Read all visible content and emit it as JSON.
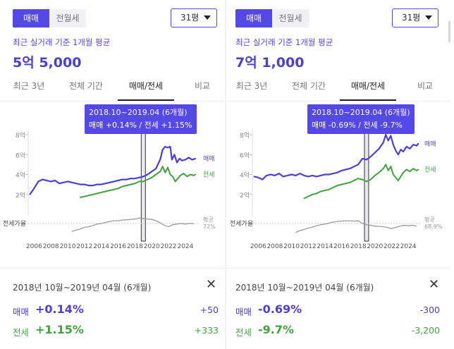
{
  "colors": {
    "accent": "#5448e6",
    "sale_line": "#4c3fd9",
    "jeonse_line": "#3fa43a",
    "ratio_line": "#9a9a9a"
  },
  "icons": {
    "dropdown": "chevron-down-icon",
    "close": "close-icon"
  },
  "panels": [
    {
      "toggle": {
        "sale": "매매",
        "rent": "전월세"
      },
      "size_select": "31평",
      "subtitle": "최근 실거래 기준 1개월 평균",
      "price": "5억 5,000",
      "tabs": [
        "최근 3년",
        "전체 기간",
        "매매/전세",
        "비교"
      ],
      "active_tab": "매매/전세",
      "tooltip": {
        "line1": "2018.10~2019.04 (6개월)",
        "line2": "매매 +0.14%  /  전세 +1.15%"
      },
      "summary": {
        "period": "2018년 10월~2019년 04월 (6개월)",
        "sale_label": "매매",
        "sale_pct": "+0.14%",
        "sale_delta": "+50",
        "jeonse_label": "전세",
        "jeonse_pct": "+1.15%",
        "jeonse_delta": "+333"
      },
      "chart_data": {
        "type": "line",
        "y_ticks": [
          "2억",
          "4억",
          "6억",
          "8억"
        ],
        "ylim": [
          0,
          8.5
        ],
        "x_ticks": [
          "2006",
          "2008",
          "2010",
          "2012",
          "2014",
          "2016",
          "2018",
          "2020",
          "2022",
          "2024"
        ],
        "xlim": [
          2005.3,
          2025.6
        ],
        "selection": [
          2018.75,
          2019.25
        ],
        "series": [
          {
            "name": "매매",
            "points": [
              [
                2005.5,
                2.0
              ],
              [
                2006,
                2.6
              ],
              [
                2006.5,
                3.3
              ],
              [
                2007,
                3.5
              ],
              [
                2007.5,
                3.4
              ],
              [
                2008,
                3.3
              ],
              [
                2008.5,
                3.4
              ],
              [
                2009,
                3.1
              ],
              [
                2009.5,
                3.2
              ],
              [
                2010,
                3.3
              ],
              [
                2010.5,
                3.2
              ],
              [
                2011,
                3.1
              ],
              [
                2011.5,
                3.0
              ],
              [
                2012,
                3.0
              ],
              [
                2012.5,
                2.9
              ],
              [
                2013,
                2.9
              ],
              [
                2013.5,
                3.0
              ],
              [
                2014,
                3.0
              ],
              [
                2014.5,
                3.1
              ],
              [
                2015,
                3.2
              ],
              [
                2015.5,
                3.3
              ],
              [
                2016,
                3.4
              ],
              [
                2016.5,
                3.5
              ],
              [
                2017,
                3.5
              ],
              [
                2017.5,
                3.6
              ],
              [
                2018,
                3.6
              ],
              [
                2018.5,
                3.7
              ],
              [
                2019,
                3.8
              ],
              [
                2019.5,
                4.0
              ],
              [
                2020,
                4.3
              ],
              [
                2020.5,
                4.6
              ],
              [
                2021,
                5.5
              ],
              [
                2021.3,
                6.5
              ],
              [
                2021.6,
                6.8
              ],
              [
                2021.9,
                6.7
              ],
              [
                2022.2,
                6.8
              ],
              [
                2022.4,
                5.5
              ],
              [
                2022.7,
                6.0
              ],
              [
                2023,
                5.2
              ],
              [
                2023.3,
                5.6
              ],
              [
                2023.6,
                5.4
              ],
              [
                2024,
                5.5
              ],
              [
                2024.4,
                5.7
              ],
              [
                2024.8,
                5.5
              ],
              [
                2025.2,
                5.6
              ]
            ]
          },
          {
            "name": "전세",
            "points": [
              [
                2011.5,
                1.7
              ],
              [
                2012,
                1.8
              ],
              [
                2012.5,
                1.9
              ],
              [
                2013,
                2.0
              ],
              [
                2013.5,
                2.1
              ],
              [
                2014,
                2.2
              ],
              [
                2014.5,
                2.3
              ],
              [
                2015,
                2.4
              ],
              [
                2015.5,
                2.5
              ],
              [
                2016,
                2.6
              ],
              [
                2016.5,
                2.8
              ],
              [
                2017,
                2.9
              ],
              [
                2017.5,
                3.0
              ],
              [
                2018,
                3.1
              ],
              [
                2018.5,
                3.3
              ],
              [
                2019,
                3.3
              ],
              [
                2019.5,
                3.5
              ],
              [
                2020,
                3.7
              ],
              [
                2020.5,
                4.0
              ],
              [
                2021,
                4.3
              ],
              [
                2021.3,
                4.8
              ],
              [
                2021.6,
                4.2
              ],
              [
                2021.9,
                4.7
              ],
              [
                2022.2,
                4.0
              ],
              [
                2022.5,
                3.8
              ],
              [
                2022.8,
                3.3
              ],
              [
                2023.1,
                3.6
              ],
              [
                2023.4,
                3.9
              ],
              [
                2023.8,
                4.1
              ],
              [
                2024.2,
                3.8
              ],
              [
                2024.6,
                4.0
              ],
              [
                2025,
                3.9
              ],
              [
                2025.2,
                4.0
              ]
            ]
          }
        ],
        "ratio_label": "전세가율",
        "ratio_avg_label": "평균",
        "ratio_avg_value": "72%",
        "ratio_points": [
          [
            2010.5,
            0.48
          ],
          [
            2011,
            0.52
          ],
          [
            2011.5,
            0.55
          ],
          [
            2012,
            0.6
          ],
          [
            2012.5,
            0.62
          ],
          [
            2013,
            0.66
          ],
          [
            2013.5,
            0.7
          ],
          [
            2014,
            0.72
          ],
          [
            2014.5,
            0.75
          ],
          [
            2015,
            0.78
          ],
          [
            2015.5,
            0.8
          ],
          [
            2016,
            0.8
          ],
          [
            2016.5,
            0.82
          ],
          [
            2017,
            0.83
          ],
          [
            2017.5,
            0.84
          ],
          [
            2018,
            0.85
          ],
          [
            2018.5,
            0.88
          ],
          [
            2019,
            0.87
          ],
          [
            2019.5,
            0.85
          ],
          [
            2020,
            0.84
          ],
          [
            2020.5,
            0.8
          ],
          [
            2021,
            0.74
          ],
          [
            2021.5,
            0.66
          ],
          [
            2022,
            0.62
          ],
          [
            2022.5,
            0.68
          ],
          [
            2023,
            0.7
          ],
          [
            2023.5,
            0.72
          ],
          [
            2024,
            0.7
          ],
          [
            2024.5,
            0.72
          ],
          [
            2025,
            0.71
          ]
        ]
      }
    },
    {
      "toggle": {
        "sale": "매매",
        "rent": "전월세"
      },
      "size_select": "31평",
      "subtitle": "최근 실거래 기준 1개월 평균",
      "price": "7억 1,000",
      "tabs": [
        "최근 3년",
        "전체 기간",
        "매매/전세",
        "비교"
      ],
      "active_tab": "매매/전세",
      "tooltip": {
        "line1": "2018.10~2019.04 (6개월)",
        "line2": "매매 -0.69%  /  전세 -9.7%"
      },
      "summary": {
        "period": "2018년 10월~2019년 04월 (6개월)",
        "sale_label": "매매",
        "sale_pct": "-0.69%",
        "sale_delta": "-300",
        "jeonse_label": "전세",
        "jeonse_pct": "-9.7%",
        "jeonse_delta": "-3,200"
      },
      "chart_data": {
        "type": "line",
        "y_ticks": [
          "2억",
          "4억",
          "6억",
          "8억"
        ],
        "ylim": [
          0,
          8.5
        ],
        "x_ticks": [
          "2006",
          "2008",
          "2010",
          "2012",
          "2014",
          "2016",
          "2018",
          "2020",
          "2022",
          "2024"
        ],
        "xlim": [
          2005.3,
          2025.6
        ],
        "selection": [
          2018.75,
          2019.25
        ],
        "series": [
          {
            "name": "매매",
            "points": [
              [
                2005.5,
                3.8
              ],
              [
                2006,
                3.7
              ],
              [
                2006.5,
                3.5
              ],
              [
                2007,
                3.9
              ],
              [
                2007.5,
                4.0
              ],
              [
                2008,
                3.9
              ],
              [
                2008.5,
                4.1
              ],
              [
                2009,
                3.8
              ],
              [
                2009.5,
                3.9
              ],
              [
                2010,
                4.0
              ],
              [
                2010.5,
                3.9
              ],
              [
                2011,
                4.1
              ],
              [
                2011.5,
                3.9
              ],
              [
                2012,
                3.8
              ],
              [
                2012.5,
                3.9
              ],
              [
                2013,
                3.8
              ],
              [
                2013.5,
                3.9
              ],
              [
                2014,
                4.0
              ],
              [
                2014.5,
                4.0
              ],
              [
                2015,
                4.1
              ],
              [
                2015.5,
                4.2
              ],
              [
                2016,
                4.4
              ],
              [
                2016.5,
                4.5
              ],
              [
                2017,
                4.6
              ],
              [
                2017.5,
                4.8
              ],
              [
                2018,
                5.0
              ],
              [
                2018.5,
                5.6
              ],
              [
                2019,
                5.5
              ],
              [
                2019.5,
                5.8
              ],
              [
                2020,
                6.2
              ],
              [
                2020.5,
                6.6
              ],
              [
                2021,
                7.2
              ],
              [
                2021.3,
                8.0
              ],
              [
                2021.6,
                7.4
              ],
              [
                2021.9,
                7.9
              ],
              [
                2022.2,
                7.0
              ],
              [
                2022.5,
                6.4
              ],
              [
                2022.8,
                6.0
              ],
              [
                2023.1,
                6.5
              ],
              [
                2023.4,
                6.3
              ],
              [
                2023.8,
                6.8
              ],
              [
                2024.2,
                6.6
              ],
              [
                2024.6,
                7.0
              ],
              [
                2025,
                6.9
              ],
              [
                2025.2,
                7.1
              ]
            ]
          },
          {
            "name": "전세",
            "points": [
              [
                2011.5,
                1.6
              ],
              [
                2012,
                1.8
              ],
              [
                2012.5,
                2.0
              ],
              [
                2013,
                2.1
              ],
              [
                2013.5,
                2.3
              ],
              [
                2014,
                2.4
              ],
              [
                2014.5,
                2.5
              ],
              [
                2015,
                2.7
              ],
              [
                2015.5,
                2.9
              ],
              [
                2016,
                3.0
              ],
              [
                2016.5,
                3.1
              ],
              [
                2017,
                3.2
              ],
              [
                2017.5,
                3.4
              ],
              [
                2018,
                3.6
              ],
              [
                2018.5,
                3.5
              ],
              [
                2019,
                3.3
              ],
              [
                2019.5,
                3.5
              ],
              [
                2020,
                3.9
              ],
              [
                2020.5,
                4.2
              ],
              [
                2021,
                4.6
              ],
              [
                2021.3,
                5.0
              ],
              [
                2021.6,
                4.4
              ],
              [
                2021.9,
                4.8
              ],
              [
                2022.2,
                4.0
              ],
              [
                2022.5,
                3.7
              ],
              [
                2022.8,
                3.4
              ],
              [
                2023.1,
                3.8
              ],
              [
                2023.4,
                4.2
              ],
              [
                2023.8,
                4.5
              ],
              [
                2024.2,
                4.3
              ],
              [
                2024.6,
                4.6
              ],
              [
                2025,
                4.4
              ],
              [
                2025.2,
                4.5
              ]
            ]
          }
        ],
        "ratio_label": "전세가율",
        "ratio_avg_label": "평균",
        "ratio_avg_value": "68.9%",
        "ratio_points": [
          [
            2010.5,
            0.45
          ],
          [
            2011,
            0.5
          ],
          [
            2011.5,
            0.54
          ],
          [
            2012,
            0.58
          ],
          [
            2012.5,
            0.61
          ],
          [
            2013,
            0.65
          ],
          [
            2013.5,
            0.68
          ],
          [
            2014,
            0.7
          ],
          [
            2014.5,
            0.73
          ],
          [
            2015,
            0.76
          ],
          [
            2015.5,
            0.78
          ],
          [
            2016,
            0.79
          ],
          [
            2016.5,
            0.8
          ],
          [
            2017,
            0.8
          ],
          [
            2017.5,
            0.79
          ],
          [
            2018,
            0.8
          ],
          [
            2018.5,
            0.72
          ],
          [
            2019,
            0.68
          ],
          [
            2019.5,
            0.66
          ],
          [
            2020,
            0.64
          ],
          [
            2020.5,
            0.63
          ],
          [
            2021,
            0.62
          ],
          [
            2021.5,
            0.6
          ],
          [
            2022,
            0.56
          ],
          [
            2022.5,
            0.6
          ],
          [
            2023,
            0.64
          ],
          [
            2023.5,
            0.66
          ],
          [
            2024,
            0.65
          ],
          [
            2024.5,
            0.66
          ],
          [
            2025,
            0.64
          ]
        ]
      }
    }
  ]
}
